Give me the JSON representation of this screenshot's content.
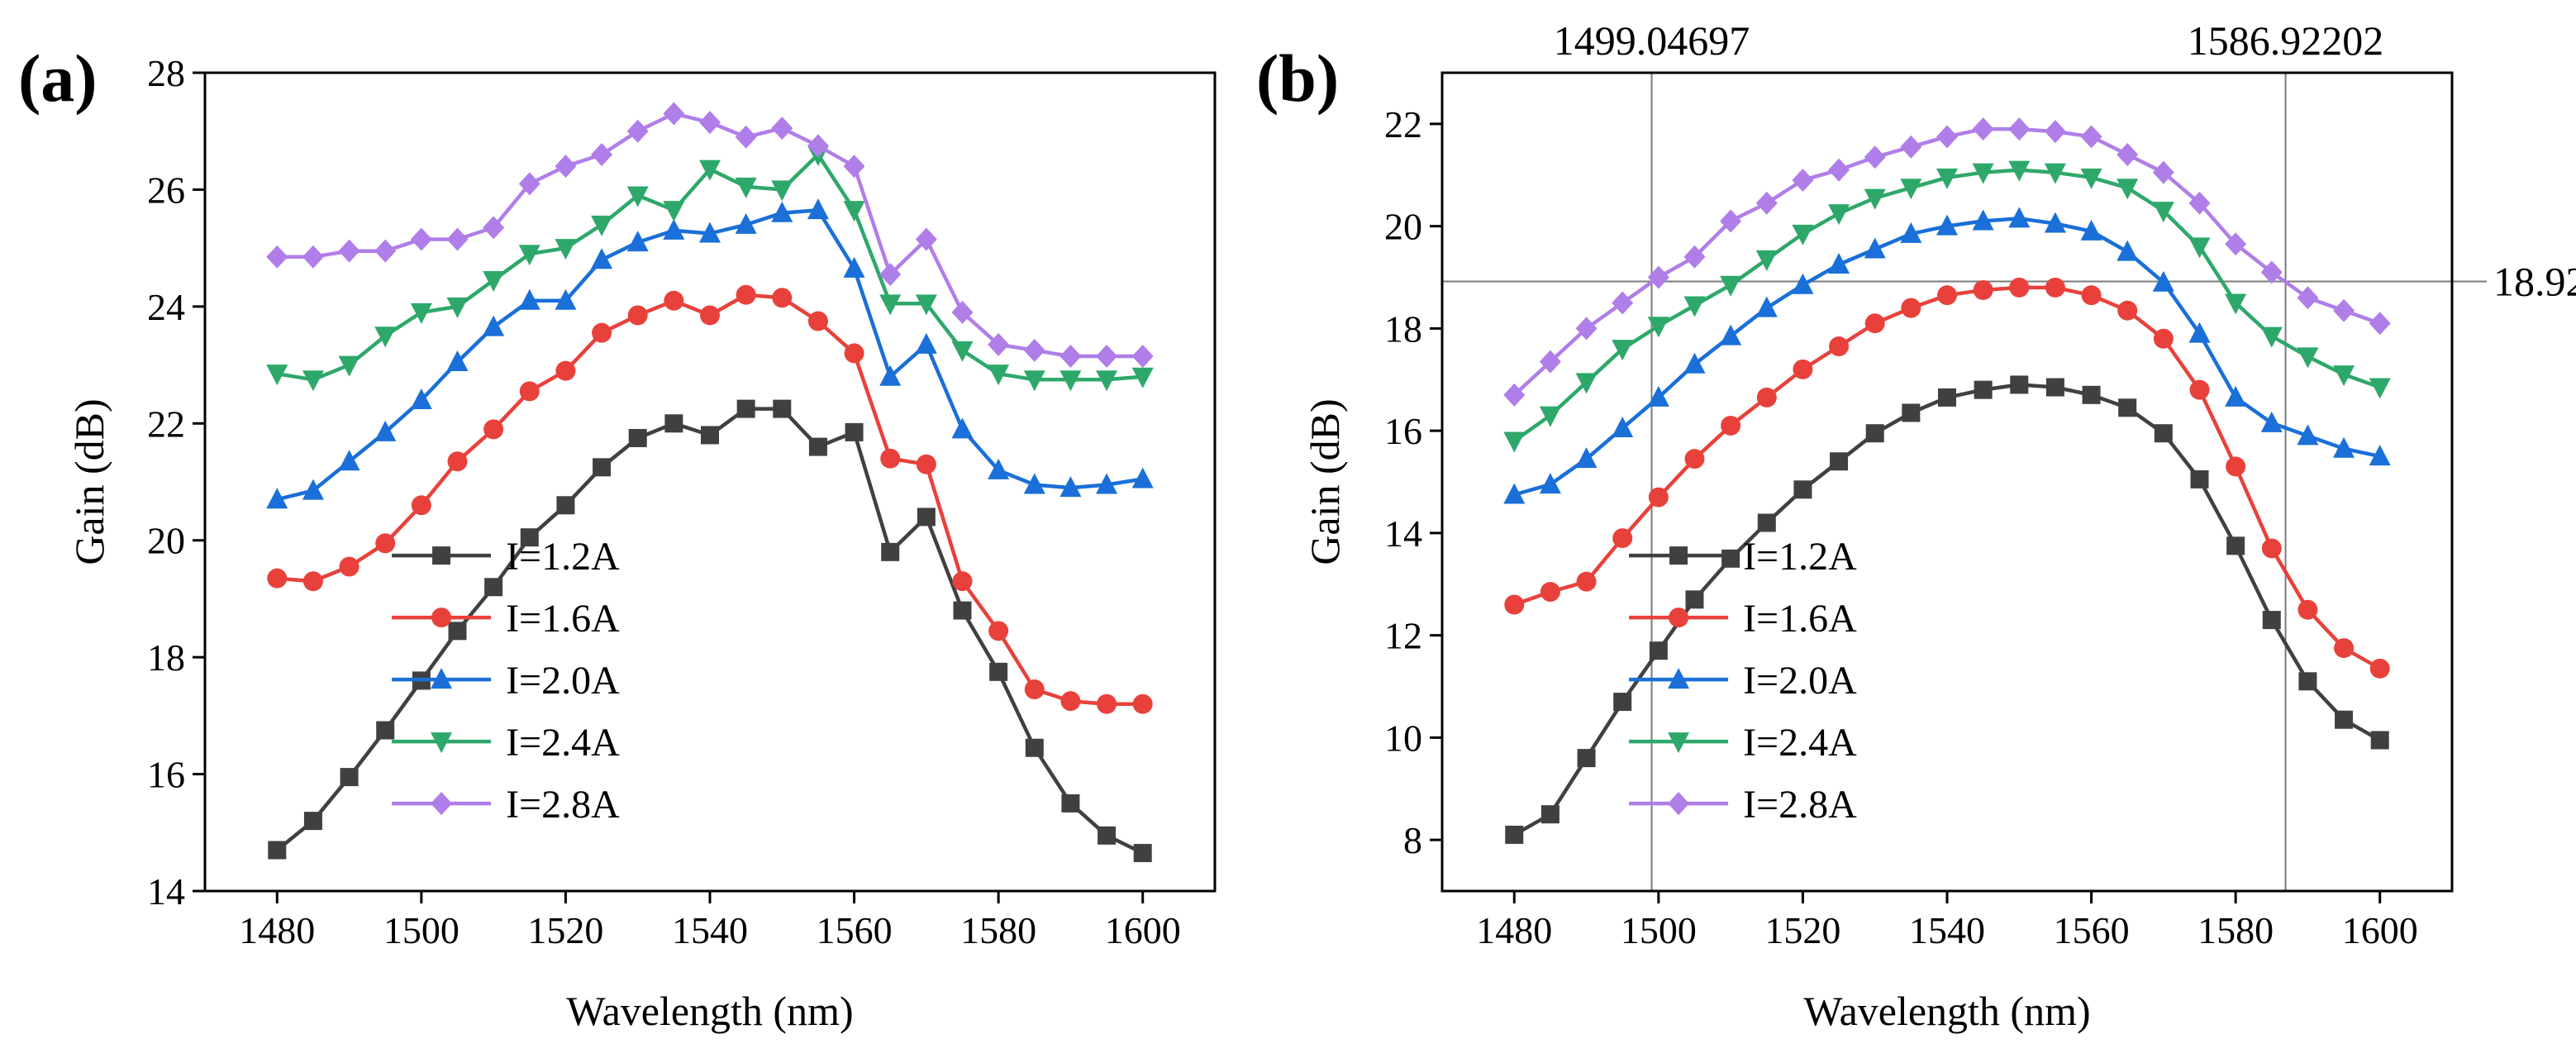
{
  "chart_data": [
    {
      "type": "line",
      "panel_label": "(a)",
      "xlabel": "Wavelength (nm)",
      "ylabel": "Gain (dB)",
      "xlim": [
        1470,
        1610
      ],
      "ylim": [
        14,
        28
      ],
      "xticks": [
        1480,
        1500,
        1520,
        1540,
        1560,
        1580,
        1600
      ],
      "yticks": [
        14,
        16,
        18,
        20,
        22,
        24,
        26,
        28
      ],
      "legend_position": "lower-center",
      "x": [
        1480,
        1485,
        1490,
        1495,
        1500,
        1505,
        1510,
        1515,
        1520,
        1525,
        1530,
        1535,
        1540,
        1545,
        1550,
        1555,
        1560,
        1565,
        1570,
        1575,
        1580,
        1585,
        1590,
        1595,
        1600
      ],
      "series": [
        {
          "name": "I=1.2A",
          "color": "#404040",
          "marker": "square",
          "values": [
            14.7,
            15.2,
            15.95,
            16.75,
            17.6,
            18.45,
            19.2,
            20.05,
            20.6,
            21.25,
            21.75,
            22.0,
            21.8,
            22.25,
            22.25,
            21.6,
            21.85,
            19.8,
            20.4,
            18.8,
            17.75,
            16.45,
            15.5,
            14.95,
            14.65
          ]
        },
        {
          "name": "I=1.6A",
          "color": "#e8413b",
          "marker": "circle",
          "values": [
            19.35,
            19.3,
            19.55,
            19.95,
            20.6,
            21.35,
            21.9,
            22.55,
            22.9,
            23.55,
            23.85,
            24.1,
            23.85,
            24.2,
            24.15,
            23.75,
            23.2,
            21.4,
            21.3,
            19.3,
            18.45,
            17.45,
            17.25,
            17.2,
            17.2
          ]
        },
        {
          "name": "I=2.0A",
          "color": "#1a6fd8",
          "marker": "triangle-up",
          "values": [
            20.7,
            20.85,
            21.35,
            21.85,
            22.4,
            23.05,
            23.65,
            24.1,
            24.1,
            24.8,
            25.1,
            25.3,
            25.25,
            25.4,
            25.6,
            25.65,
            24.65,
            22.8,
            23.35,
            21.9,
            21.2,
            20.95,
            20.9,
            20.95,
            21.05
          ]
        },
        {
          "name": "I=2.4A",
          "color": "#2ea86a",
          "marker": "triangle-down",
          "values": [
            22.85,
            22.75,
            23.0,
            23.5,
            23.9,
            24.0,
            24.45,
            24.9,
            25.0,
            25.4,
            25.9,
            25.65,
            26.35,
            26.05,
            26.0,
            26.6,
            25.65,
            24.05,
            24.05,
            23.25,
            22.85,
            22.75,
            22.75,
            22.75,
            22.8
          ]
        },
        {
          "name": "I=2.8A",
          "color": "#b07ee8",
          "marker": "diamond",
          "values": [
            24.85,
            24.85,
            24.95,
            24.95,
            25.15,
            25.15,
            25.35,
            26.1,
            26.4,
            26.6,
            27.0,
            27.3,
            27.15,
            26.9,
            27.05,
            26.75,
            26.4,
            24.55,
            25.15,
            23.9,
            23.35,
            23.25,
            23.15,
            23.15,
            23.15
          ]
        }
      ]
    },
    {
      "type": "line",
      "panel_label": "(b)",
      "xlabel": "Wavelength (nm)",
      "ylabel": "Gain (dB)",
      "xlim": [
        1470,
        1610
      ],
      "ylim": [
        7,
        23
      ],
      "xticks": [
        1480,
        1500,
        1520,
        1540,
        1560,
        1580,
        1600
      ],
      "yticks": [
        8,
        10,
        12,
        14,
        16,
        18,
        20,
        22
      ],
      "legend_position": "lower-center",
      "reference_lines": {
        "vertical": [
          {
            "value": 1499.04697,
            "label": "1499.04697"
          },
          {
            "value": 1586.92202,
            "label": "1586.92202"
          }
        ],
        "horizontal": [
          {
            "value": 18.92,
            "label": "18.92"
          }
        ]
      },
      "x": [
        1480,
        1485,
        1490,
        1495,
        1500,
        1505,
        1510,
        1515,
        1520,
        1525,
        1530,
        1535,
        1540,
        1545,
        1550,
        1555,
        1560,
        1565,
        1570,
        1575,
        1580,
        1585,
        1590,
        1595,
        1600
      ],
      "series": [
        {
          "name": "I=1.2A",
          "color": "#404040",
          "marker": "square",
          "values": [
            8.1,
            8.5,
            9.6,
            10.7,
            11.7,
            12.7,
            13.5,
            14.2,
            14.85,
            15.4,
            15.95,
            16.35,
            16.65,
            16.8,
            16.9,
            16.85,
            16.7,
            16.45,
            15.95,
            15.05,
            13.75,
            12.3,
            11.1,
            10.35,
            9.95
          ]
        },
        {
          "name": "I=1.6A",
          "color": "#e8413b",
          "marker": "circle",
          "values": [
            12.6,
            12.85,
            13.05,
            13.9,
            14.7,
            15.45,
            16.1,
            16.65,
            17.2,
            17.65,
            18.1,
            18.4,
            18.65,
            18.75,
            18.8,
            18.8,
            18.65,
            18.35,
            17.8,
            16.8,
            15.3,
            13.7,
            12.5,
            11.75,
            11.35
          ]
        },
        {
          "name": "I=2.0A",
          "color": "#1a6fd8",
          "marker": "triangle-up",
          "values": [
            14.75,
            14.95,
            15.45,
            16.05,
            16.65,
            17.3,
            17.85,
            18.4,
            18.85,
            19.25,
            19.55,
            19.85,
            20.0,
            20.1,
            20.15,
            20.05,
            19.9,
            19.5,
            18.9,
            17.9,
            16.65,
            16.15,
            15.9,
            15.65,
            15.5
          ]
        },
        {
          "name": "I=2.4A",
          "color": "#2ea86a",
          "marker": "triangle-down",
          "values": [
            15.8,
            16.3,
            16.95,
            17.6,
            18.05,
            18.45,
            18.85,
            19.35,
            19.85,
            20.25,
            20.55,
            20.75,
            20.95,
            21.05,
            21.1,
            21.05,
            20.95,
            20.75,
            20.3,
            19.6,
            18.5,
            17.85,
            17.45,
            17.1,
            16.85
          ]
        },
        {
          "name": "I=2.8A",
          "color": "#b07ee8",
          "marker": "diamond",
          "values": [
            16.7,
            17.35,
            18.0,
            18.5,
            19.0,
            19.4,
            20.1,
            20.45,
            20.9,
            21.1,
            21.35,
            21.55,
            21.75,
            21.9,
            21.9,
            21.85,
            21.75,
            21.4,
            21.05,
            20.45,
            19.65,
            19.1,
            18.6,
            18.35,
            18.1
          ]
        }
      ]
    }
  ]
}
